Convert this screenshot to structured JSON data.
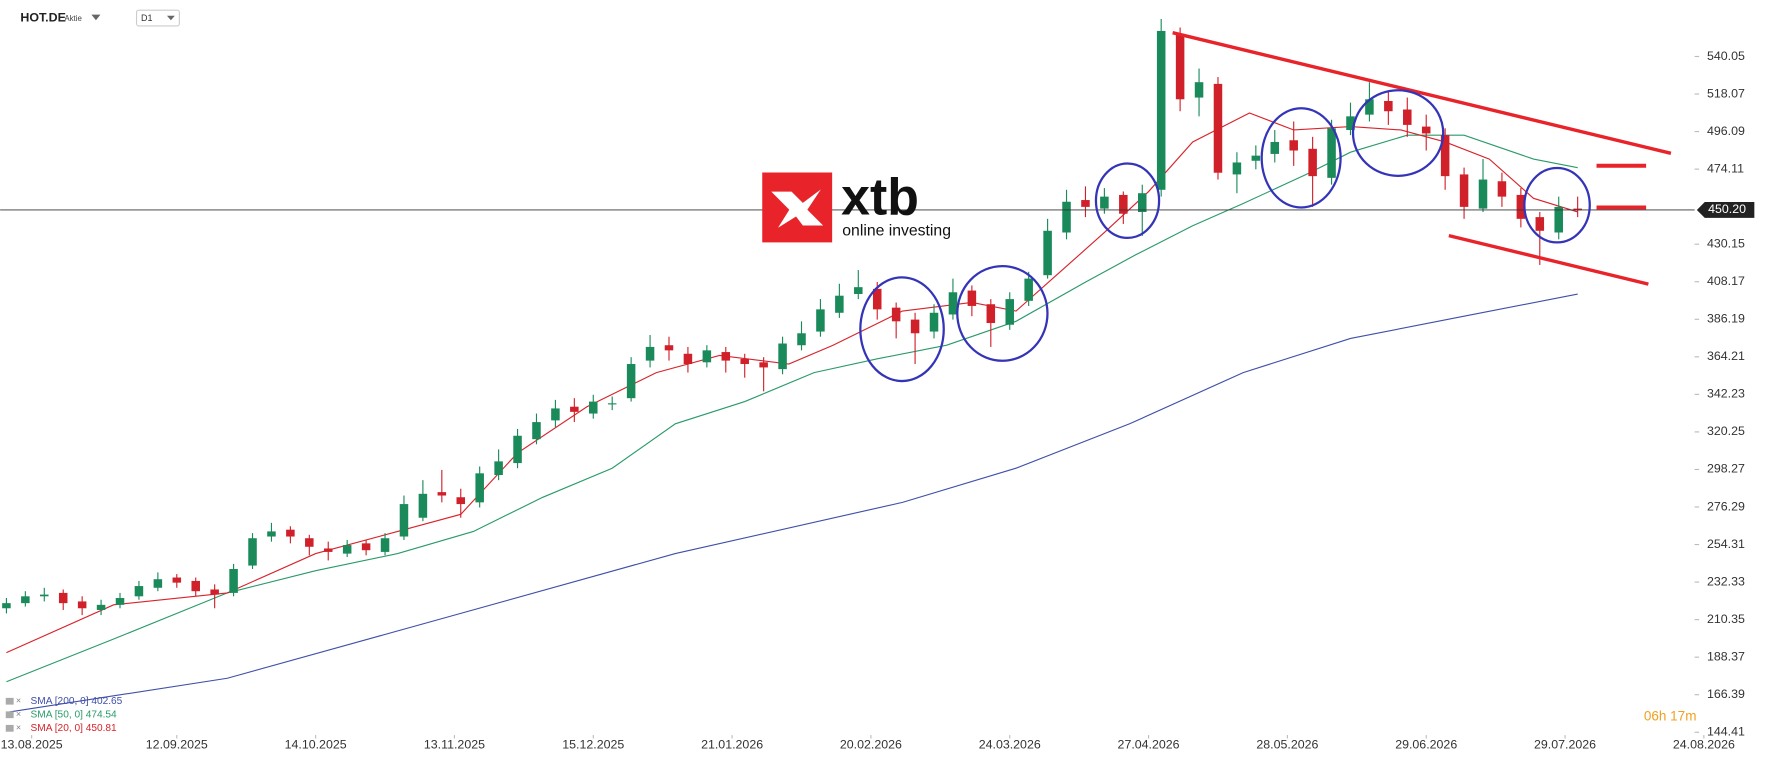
{
  "chart_data": {
    "type": "candlestick",
    "header": {
      "symbol": "HOT.DE",
      "instrument_type": "Aktie",
      "timeframe": "D1"
    },
    "logo": {
      "brand": "xtb",
      "tagline": "online investing"
    },
    "timer": "06h 17m",
    "up_color": "#1a8a5a",
    "down_color": "#d0202a",
    "x": [
      0,
      3,
      6,
      9,
      12,
      15,
      18,
      21,
      24,
      27,
      30,
      33,
      36,
      39,
      42,
      45,
      48,
      51,
      54,
      57,
      60,
      63,
      66,
      69,
      72,
      75,
      78,
      81,
      84,
      87,
      90,
      93,
      96,
      99,
      102,
      105,
      108,
      111,
      114,
      117,
      120,
      123,
      126,
      129,
      132,
      135,
      138,
      141,
      144,
      147,
      150,
      153,
      156,
      159,
      162,
      165,
      168,
      171,
      174,
      177,
      180,
      183,
      186,
      189,
      192,
      195,
      198,
      201,
      204,
      207,
      210,
      213,
      216,
      219,
      222,
      225,
      228,
      231,
      234,
      237,
      240,
      243,
      246,
      249
    ],
    "open": [
      217,
      220,
      224,
      226,
      221,
      216,
      219,
      224,
      229,
      235,
      233,
      228,
      226,
      242,
      259,
      263,
      258,
      252,
      249,
      255,
      250,
      259,
      270,
      285,
      282,
      279,
      295,
      302,
      316,
      327,
      335,
      331,
      337,
      340,
      362,
      371,
      366,
      361,
      367,
      363,
      361,
      357,
      371,
      379,
      390,
      401,
      404,
      393,
      386,
      379,
      389,
      403,
      395,
      383,
      397,
      412,
      437,
      456,
      451,
      459,
      449,
      462,
      553,
      516,
      524,
      471,
      479,
      483,
      491,
      486,
      469,
      497,
      506,
      514,
      509,
      499,
      494,
      471,
      451,
      467,
      459,
      446,
      437,
      451
    ],
    "high": [
      223,
      227,
      229,
      228,
      224,
      222,
      226,
      233,
      238,
      237,
      235,
      231,
      243,
      261,
      267,
      265,
      260,
      256,
      257,
      257,
      261,
      283,
      292,
      298,
      287,
      300,
      310,
      322,
      331,
      339,
      340,
      342,
      341,
      364,
      377,
      376,
      370,
      371,
      370,
      366,
      364,
      376,
      385,
      398,
      407,
      415,
      408,
      396,
      390,
      395,
      410,
      406,
      398,
      402,
      414,
      445,
      462,
      464,
      463,
      461,
      465,
      562,
      557,
      533,
      528,
      484,
      488,
      497,
      502,
      493,
      503,
      513,
      525,
      520,
      516,
      506,
      498,
      475,
      480,
      472,
      463,
      449,
      458,
      458
    ],
    "low": [
      214,
      218,
      221,
      216,
      213,
      213,
      217,
      222,
      227,
      229,
      224,
      217,
      224,
      240,
      256,
      255,
      248,
      245,
      247,
      248,
      248,
      257,
      268,
      279,
      270,
      276,
      292,
      299,
      313,
      323,
      326,
      328,
      333,
      338,
      358,
      362,
      355,
      358,
      355,
      352,
      344,
      354,
      368,
      376,
      387,
      398,
      386,
      375,
      360,
      375,
      386,
      388,
      370,
      380,
      394,
      410,
      433,
      446,
      448,
      442,
      435,
      458,
      508,
      505,
      468,
      460,
      474,
      478,
      476,
      452,
      465,
      494,
      502,
      500,
      493,
      485,
      462,
      445,
      449,
      452,
      440,
      418,
      433,
      446
    ],
    "close": [
      220,
      224,
      225,
      220,
      217,
      219,
      223,
      230,
      234,
      232,
      227,
      225,
      240,
      258,
      262,
      259,
      253,
      250,
      254,
      251,
      258,
      278,
      284,
      283,
      278,
      296,
      303,
      318,
      326,
      334,
      332,
      338,
      337,
      360,
      370,
      368,
      360,
      368,
      362,
      360,
      358,
      372,
      378,
      392,
      400,
      405,
      392,
      385,
      378,
      390,
      402,
      394,
      384,
      398,
      410,
      438,
      455,
      452,
      458,
      448,
      460,
      555,
      515,
      525,
      472,
      478,
      482,
      490,
      485,
      470,
      498,
      505,
      515,
      508,
      500,
      495,
      470,
      452,
      468,
      458,
      445,
      438,
      452,
      450
    ],
    "overlays": [
      {
        "name": "SMA [200, 0] 402.65",
        "color": "#3f4fa8",
        "x": [
          0,
          35,
          71,
          106,
          142,
          160,
          178,
          196,
          213,
          231,
          249
        ],
        "values": [
          156,
          176,
          213,
          249,
          279,
          299,
          325,
          355,
          375,
          388,
          401
        ]
      },
      {
        "name": "SMA [50, 0] 474.54",
        "color": "#2a9a6a",
        "x": [
          0,
          17,
          35,
          49,
          62,
          74,
          85,
          96,
          106,
          117,
          128,
          138,
          149,
          160,
          171,
          179,
          188,
          196,
          206,
          213,
          222,
          231,
          242,
          249
        ],
        "values": [
          174,
          199,
          226,
          239,
          249,
          262,
          282,
          299,
          325,
          338,
          355,
          363,
          371,
          385,
          408,
          424,
          441,
          454,
          471,
          484,
          494,
          494,
          480,
          475
        ]
      },
      {
        "name": "SMA [20, 0] 450.81",
        "color": "#d8232a",
        "x": [
          0,
          17,
          35,
          49,
          62,
          72,
          81,
          92,
          103,
          113,
          124,
          131,
          142,
          153,
          160,
          167,
          174,
          181,
          188,
          197,
          204,
          213,
          221,
          228,
          235,
          242,
          249
        ],
        "values": [
          191,
          219,
          226,
          249,
          262,
          272,
          308,
          335,
          355,
          365,
          360,
          371,
          391,
          396,
          391,
          414,
          437,
          461,
          490,
          507,
          497,
          499,
          497,
          490,
          480,
          457,
          449
        ]
      }
    ],
    "price_line": {
      "value": 450.2,
      "label": "450.20"
    },
    "xlim": [
      -1,
      272
    ],
    "xticks": [
      {
        "value": 4,
        "label": "13.08.2025"
      },
      {
        "value": 27,
        "label": "12.09.2025"
      },
      {
        "value": 49,
        "label": "14.10.2025"
      },
      {
        "value": 71,
        "label": "13.11.2025"
      },
      {
        "value": 93,
        "label": "15.12.2025"
      },
      {
        "value": 115,
        "label": "21.01.2026"
      },
      {
        "value": 137,
        "label": "20.02.2026"
      },
      {
        "value": 159,
        "label": "24.03.2026"
      },
      {
        "value": 181,
        "label": "27.04.2026"
      },
      {
        "value": 203,
        "label": "28.05.2026"
      },
      {
        "value": 225,
        "label": "29.06.2026"
      },
      {
        "value": 247,
        "label": "29.07.2026"
      },
      {
        "value": 269,
        "label": "24.08.2026"
      }
    ],
    "ylim": [
      140.78,
      569.82
    ],
    "yticks": [
      144.41,
      166.39,
      188.37,
      210.35,
      232.33,
      254.31,
      276.29,
      298.27,
      320.25,
      342.23,
      364.21,
      386.19,
      408.17,
      430.15,
      474.11,
      496.09,
      518.07,
      540.05
    ]
  }
}
